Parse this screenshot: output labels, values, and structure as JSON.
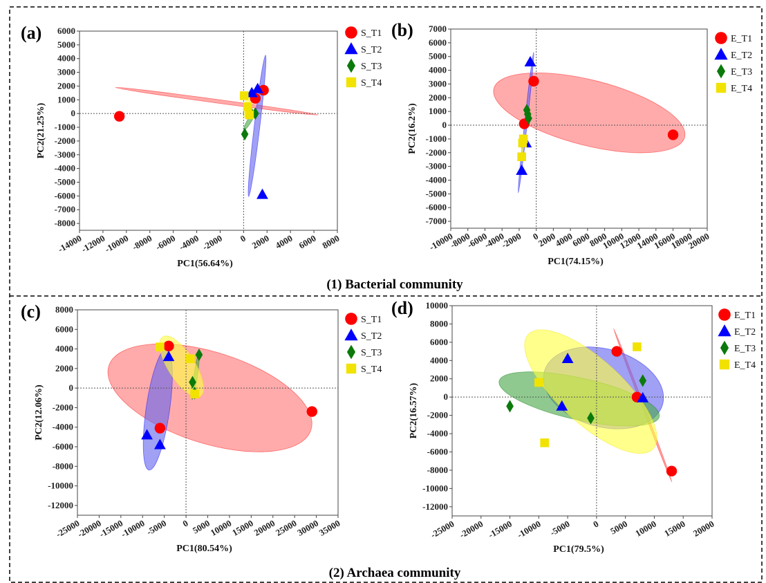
{
  "chart_data": [
    {
      "panel": "(a)",
      "type": "scatter",
      "xlabel": "PC1(56.64%)",
      "ylabel": "PC2(21.25%)",
      "xlim": [
        -14000,
        8000
      ],
      "ylim": [
        -8500,
        6000
      ],
      "xticks": [
        -14000,
        -12000,
        -10000,
        -8000,
        -6000,
        -4000,
        -2000,
        0,
        2000,
        4000,
        6000,
        8000
      ],
      "yticks": [
        -8000,
        -7000,
        -6000,
        -5000,
        -4000,
        -3000,
        -2000,
        -1000,
        0,
        1000,
        2000,
        3000,
        4000,
        5000,
        6000
      ],
      "grid": false,
      "legend": "right",
      "series": [
        {
          "name": "S_T1",
          "marker": "circle",
          "color": "#ff0000",
          "fill": "#ff7777",
          "points": [
            [
              -10600,
              -200
            ],
            [
              1000,
              1100
            ],
            [
              1700,
              1700
            ]
          ],
          "ellipse": {
            "cx": -2300,
            "cy": 900,
            "rx": 8700,
            "ry": 130,
            "angle": -6.6
          }
        },
        {
          "name": "S_T2",
          "marker": "triangle",
          "color": "#0000ff",
          "fill": "#6666ee",
          "points": [
            [
              1600,
              -5900
            ],
            [
              700,
              1500
            ],
            [
              1200,
              1800
            ]
          ],
          "ellipse": {
            "cx": 1150,
            "cy": -900,
            "rx": 5200,
            "ry": 240,
            "angle": 82
          }
        },
        {
          "name": "S_T3",
          "marker": "diamond",
          "color": "#0b7a0b",
          "fill": "#4aa84a",
          "points": [
            [
              100,
              -1500
            ],
            [
              600,
              100
            ],
            [
              1000,
              0
            ]
          ],
          "ellipse": {
            "cx": 550,
            "cy": -450,
            "rx": 900,
            "ry": 170,
            "angle": 55
          }
        },
        {
          "name": "S_T4",
          "marker": "square",
          "color": "#f2e200",
          "fill": "#ffff44",
          "points": [
            [
              50,
              1300
            ],
            [
              350,
              500
            ],
            [
              500,
              -100
            ]
          ],
          "ellipse": {
            "cx": 300,
            "cy": 600,
            "rx": 900,
            "ry": 200,
            "angle": 75
          }
        }
      ]
    },
    {
      "panel": "(b)",
      "type": "scatter",
      "xlabel": "PC1(74.15%)",
      "ylabel": "PC2(16.2%)",
      "xlim": [
        -10000,
        20000
      ],
      "ylim": [
        -7500,
        7000
      ],
      "xticks": [
        -10000,
        -8000,
        -6000,
        -4000,
        -2000,
        0,
        2000,
        4000,
        6000,
        8000,
        10000,
        12000,
        14000,
        16000,
        18000,
        20000
      ],
      "yticks": [
        -7000,
        -6000,
        -5000,
        -4000,
        -3000,
        -2000,
        -1000,
        0,
        1000,
        2000,
        3000,
        4000,
        5000,
        6000,
        7000
      ],
      "grid": false,
      "legend": "right",
      "series": [
        {
          "name": "E_T1",
          "marker": "circle",
          "color": "#ff0000",
          "fill": "#ff7777",
          "points": [
            [
              -1400,
              100
            ],
            [
              -300,
              3200
            ],
            [
              16000,
              -700
            ]
          ],
          "ellipse": {
            "cx": 6200,
            "cy": 900,
            "rx": 11300,
            "ry": 2400,
            "angle": -9
          }
        },
        {
          "name": "E_T2",
          "marker": "triangle",
          "color": "#0000ff",
          "fill": "#6666ee",
          "points": [
            [
              -700,
              4600
            ],
            [
              -1200,
              -1300
            ],
            [
              -1700,
              -3300
            ]
          ],
          "ellipse": {
            "cx": -1200,
            "cy": 200,
            "rx": 5200,
            "ry": 150,
            "angle": 80
          }
        },
        {
          "name": "E_T3",
          "marker": "diamond",
          "color": "#0b7a0b",
          "fill": "#4aa84a",
          "points": [
            [
              -1100,
              1100
            ],
            [
              -1000,
              800
            ],
            [
              -900,
              500
            ]
          ],
          "ellipse": {
            "cx": -1000,
            "cy": 800,
            "rx": 500,
            "ry": 60,
            "angle": 80
          }
        },
        {
          "name": "E_T4",
          "marker": "square",
          "color": "#f2e200",
          "fill": "#ffff44",
          "points": [
            [
              -1500,
              -1000
            ],
            [
              -1600,
              -1300
            ],
            [
              -1700,
              -2300
            ]
          ],
          "ellipse": {
            "cx": -1600,
            "cy": -1500,
            "rx": 900,
            "ry": 90,
            "angle": 85
          }
        }
      ]
    },
    {
      "panel": "(c)",
      "type": "scatter",
      "xlabel": "PC1(80.54%)",
      "ylabel": "PC2(12.06%)",
      "xlim": [
        -25000,
        35000
      ],
      "ylim": [
        -13000,
        8000
      ],
      "xticks": [
        -25000,
        -20000,
        -15000,
        -10000,
        -5000,
        0,
        5000,
        10000,
        15000,
        20000,
        25000,
        30000,
        35000
      ],
      "yticks": [
        -12000,
        -10000,
        -8000,
        -6000,
        -4000,
        -2000,
        0,
        2000,
        4000,
        6000,
        8000
      ],
      "grid": false,
      "legend": "right",
      "series": [
        {
          "name": "S_T1",
          "marker": "circle",
          "color": "#ff0000",
          "fill": "#ff7777",
          "points": [
            [
              -4000,
              4300
            ],
            [
              -6000,
              -4100
            ],
            [
              29000,
              -2400
            ]
          ],
          "ellipse": {
            "cx": 5500,
            "cy": -1000,
            "rx": 23500,
            "ry": 4700,
            "angle": -8
          }
        },
        {
          "name": "S_T2",
          "marker": "triangle",
          "color": "#0000ff",
          "fill": "#6666ee",
          "points": [
            [
              -9000,
              -4800
            ],
            [
              -6000,
              -5800
            ],
            [
              -4000,
              3200
            ]
          ],
          "ellipse": {
            "cx": -6500,
            "cy": -2200,
            "rx": 6500,
            "ry": 2300,
            "angle": 72
          }
        },
        {
          "name": "S_T3",
          "marker": "diamond",
          "color": "#0b7a0b",
          "fill": "#4aa84a",
          "points": [
            [
              1500,
              600
            ],
            [
              2000,
              -500
            ],
            [
              3000,
              3400
            ]
          ],
          "ellipse": {
            "cx": 2200,
            "cy": 1200,
            "rx": 2500,
            "ry": 350,
            "angle": 72
          }
        },
        {
          "name": "S_T4",
          "marker": "square",
          "color": "#f2e200",
          "fill": "#ffff44",
          "points": [
            [
              -6000,
              4200
            ],
            [
              1000,
              3000
            ],
            [
              2000,
              -600
            ]
          ],
          "ellipse": {
            "cx": -1000,
            "cy": 2200,
            "rx": 5300,
            "ry": 1600,
            "angle": -35
          }
        }
      ]
    },
    {
      "panel": "(d)",
      "type": "scatter",
      "xlabel": "PC1(79.5%)",
      "ylabel": "PC2(16.57%)",
      "xlim": [
        -25000,
        20000
      ],
      "ylim": [
        -13000,
        10000
      ],
      "xticks": [
        -25000,
        -20000,
        -15000,
        -10000,
        -5000,
        0,
        5000,
        10000,
        15000,
        20000
      ],
      "yticks": [
        -12000,
        -10000,
        -8000,
        -6000,
        -4000,
        -2000,
        0,
        2000,
        4000,
        6000,
        8000,
        10000
      ],
      "grid": false,
      "legend": "right",
      "series": [
        {
          "name": "E_T1",
          "marker": "circle",
          "color": "#ff0000",
          "fill": "#ff7777",
          "points": [
            [
              3500,
              5000
            ],
            [
              7000,
              0
            ],
            [
              13000,
              -8100
            ]
          ],
          "ellipse": {
            "cx": 8000,
            "cy": -900,
            "rx": 9800,
            "ry": 120,
            "angle": -59
          }
        },
        {
          "name": "E_T2",
          "marker": "triangle",
          "color": "#0000ff",
          "fill": "#6666ee",
          "points": [
            [
              -5000,
              4200
            ],
            [
              -6000,
              -1000
            ],
            [
              8000,
              -100
            ]
          ],
          "ellipse": {
            "cx": 1200,
            "cy": 1000,
            "rx": 10400,
            "ry": 4300,
            "angle": -10
          }
        },
        {
          "name": "E_T3",
          "marker": "diamond",
          "color": "#0b7a0b",
          "fill": "#4aa84a",
          "points": [
            [
              -15000,
              -1000
            ],
            [
              -1000,
              -2300
            ],
            [
              8000,
              1800
            ]
          ],
          "ellipse": {
            "cx": -3000,
            "cy": -200,
            "rx": 14000,
            "ry": 2300,
            "angle": -8
          }
        },
        {
          "name": "E_T4",
          "marker": "square",
          "color": "#f2e200",
          "fill": "#ffff44",
          "points": [
            [
              -10000,
              1600
            ],
            [
              -9000,
              -5000
            ],
            [
              7000,
              5500
            ]
          ],
          "ellipse": {
            "cx": -1000,
            "cy": 600,
            "rx": 12500,
            "ry": 3800,
            "angle": -30
          }
        }
      ]
    }
  ],
  "captions": {
    "bacterial": "(1) Bacterial community",
    "archaea": "(2) Archaea community"
  }
}
